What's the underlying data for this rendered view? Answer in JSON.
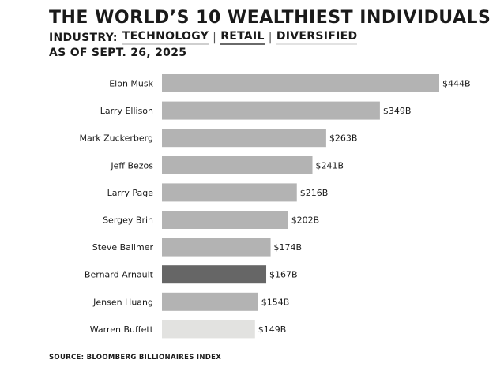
{
  "title": "THE WORLD’S 10 WEALTHIEST INDIVIDUALS",
  "subtitle_prefix": "INDUSTRY:",
  "industries": [
    {
      "label": "TECHNOLOGY",
      "color": "#b3b3b3"
    },
    {
      "label": "RETAIL",
      "color": "#666666"
    },
    {
      "label": "DIVERSIFIED",
      "color": "#e2e2e0"
    }
  ],
  "as_of": "AS OF SEPT. 26, 2025",
  "source": "SOURCE: BLOOMBERG BILLIONAIRES INDEX",
  "chart_data": {
    "type": "bar",
    "orientation": "horizontal",
    "categories": [
      "Elon Musk",
      "Larry Ellison",
      "Mark Zuckerberg",
      "Jeff Bezos",
      "Larry Page",
      "Sergey Brin",
      "Steve Ballmer",
      "Bernard Arnault",
      "Jensen Huang",
      "Warren Buffett"
    ],
    "values": [
      444,
      349,
      263,
      241,
      216,
      202,
      174,
      167,
      154,
      149
    ],
    "value_labels": [
      "$444B",
      "$349B",
      "$263B",
      "$241B",
      "$216B",
      "$202B",
      "$174B",
      "$167B",
      "$154B",
      "$149B"
    ],
    "industry": [
      "TECHNOLOGY",
      "TECHNOLOGY",
      "TECHNOLOGY",
      "TECHNOLOGY",
      "TECHNOLOGY",
      "TECHNOLOGY",
      "TECHNOLOGY",
      "RETAIL",
      "TECHNOLOGY",
      "DIVERSIFIED"
    ],
    "xlim": [
      0,
      444
    ],
    "grid": false,
    "title": "THE WORLD’S 10 WEALTHIEST INDIVIDUALS"
  }
}
